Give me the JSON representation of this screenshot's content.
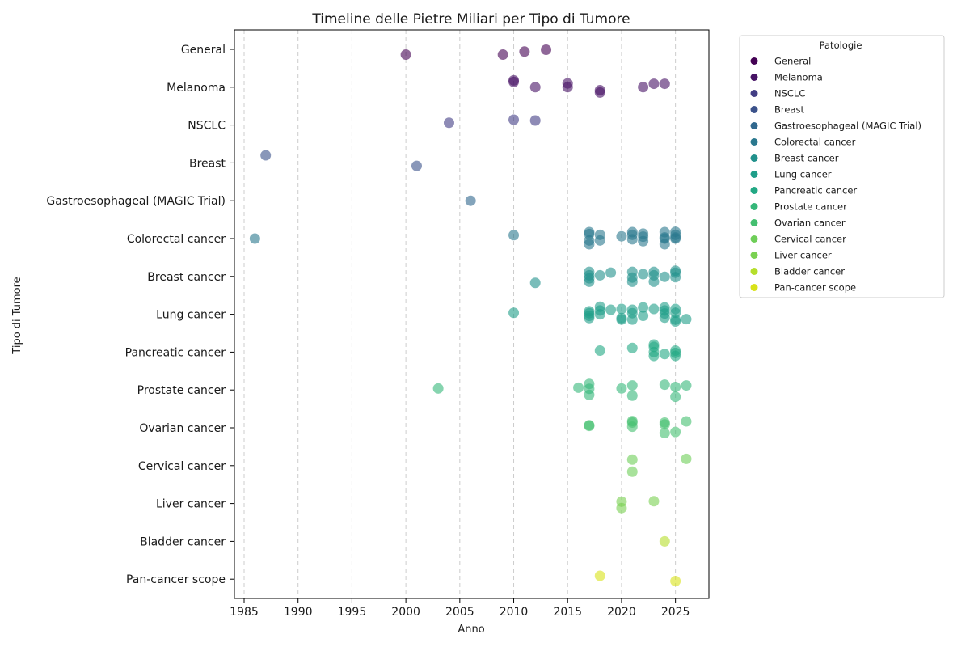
{
  "chart_data": {
    "type": "scatter",
    "title": "Timeline delle Pietre Miliari per Tipo di Tumore",
    "xlabel": "Anno",
    "ylabel": "Tipo di Tumore",
    "xlim": [
      1984.1,
      2028.1
    ],
    "xticks": [
      1985,
      1990,
      1995,
      2000,
      2005,
      2010,
      2015,
      2020,
      2025
    ],
    "grid": "x-dashed",
    "legend": {
      "title": "Patologie",
      "placement": "outside-right-top"
    },
    "categories": [
      "General",
      "Melanoma",
      "NSCLC",
      "Breast",
      "Gastroesophageal (MAGIC Trial)",
      "Colorectal cancer",
      "Breast cancer",
      "Lung cancer",
      "Pancreatic cancer",
      "Prostate cancer",
      "Ovarian cancer",
      "Cervical cancer",
      "Liver cancer",
      "Bladder cancer",
      "Pan-cancer scope"
    ],
    "colors": [
      "#440154",
      "#471365",
      "#433e85",
      "#3b528b",
      "#31688e",
      "#2a788e",
      "#21918c",
      "#1f9e89",
      "#22a884",
      "#35b779",
      "#44bf70",
      "#6ece58",
      "#7ad151",
      "#b5de2b",
      "#d8e219"
    ],
    "series": [
      {
        "name": "General",
        "points": [
          [
            2000,
            0.14
          ],
          [
            2009,
            0.14
          ],
          [
            2011,
            0.06
          ],
          [
            2013,
            0.01
          ]
        ]
      },
      {
        "name": "Melanoma",
        "points": [
          [
            2010,
            -0.18
          ],
          [
            2010,
            -0.14
          ],
          [
            2012,
            0.0
          ],
          [
            2015,
            -0.1
          ],
          [
            2015,
            0.0
          ],
          [
            2018,
            0.08
          ],
          [
            2018,
            0.14
          ],
          [
            2022,
            0.0
          ],
          [
            2023,
            -0.09
          ],
          [
            2024,
            -0.09
          ]
        ]
      },
      {
        "name": "NSCLC",
        "points": [
          [
            2004,
            -0.06
          ],
          [
            2010,
            -0.14
          ],
          [
            2012,
            -0.12
          ]
        ]
      },
      {
        "name": "Breast",
        "points": [
          [
            1987,
            -0.2
          ],
          [
            2001,
            0.08
          ]
        ]
      },
      {
        "name": "Gastroesophageal (MAGIC Trial)",
        "points": [
          [
            2006,
            0.0
          ]
        ]
      },
      {
        "name": "Colorectal cancer",
        "points": [
          [
            1986,
            0.0
          ],
          [
            2010,
            -0.09
          ],
          [
            2017,
            -0.17
          ],
          [
            2017,
            -0.12
          ],
          [
            2017,
            0.05
          ],
          [
            2017,
            0.15
          ],
          [
            2018,
            -0.1
          ],
          [
            2018,
            0.05
          ],
          [
            2020,
            -0.06
          ],
          [
            2021,
            -0.17
          ],
          [
            2021,
            -0.1
          ],
          [
            2021,
            0.02
          ],
          [
            2022,
            -0.13
          ],
          [
            2022,
            -0.05
          ],
          [
            2022,
            0.07
          ],
          [
            2024,
            -0.17
          ],
          [
            2024,
            -0.03
          ],
          [
            2024,
            0.0
          ],
          [
            2024,
            0.15
          ],
          [
            2025,
            -0.18
          ],
          [
            2025,
            -0.1
          ],
          [
            2025,
            -0.03
          ],
          [
            2025,
            0.0
          ]
        ]
      },
      {
        "name": "Breast cancer",
        "points": [
          [
            2012,
            0.17
          ],
          [
            2017,
            -0.12
          ],
          [
            2017,
            -0.03
          ],
          [
            2017,
            0.05
          ],
          [
            2017,
            0.14
          ],
          [
            2018,
            -0.03
          ],
          [
            2019,
            -0.1
          ],
          [
            2021,
            -0.12
          ],
          [
            2021,
            0.03
          ],
          [
            2021,
            0.14
          ],
          [
            2022,
            -0.06
          ],
          [
            2023,
            -0.12
          ],
          [
            2023,
            -0.03
          ],
          [
            2023,
            0.14
          ],
          [
            2024,
            0.01
          ],
          [
            2025,
            -0.15
          ],
          [
            2025,
            -0.1
          ],
          [
            2025,
            0.02
          ]
        ]
      },
      {
        "name": "Lung cancer",
        "points": [
          [
            2010,
            -0.04
          ],
          [
            2017,
            -0.08
          ],
          [
            2017,
            -0.03
          ],
          [
            2017,
            0.04
          ],
          [
            2017,
            0.1
          ],
          [
            2018,
            -0.2
          ],
          [
            2018,
            -0.1
          ],
          [
            2018,
            0.0
          ],
          [
            2019,
            -0.12
          ],
          [
            2020,
            -0.14
          ],
          [
            2020,
            0.1
          ],
          [
            2020,
            0.14
          ],
          [
            2021,
            -0.12
          ],
          [
            2021,
            -0.03
          ],
          [
            2021,
            0.14
          ],
          [
            2022,
            -0.18
          ],
          [
            2022,
            0.04
          ],
          [
            2023,
            -0.14
          ],
          [
            2024,
            -0.18
          ],
          [
            2024,
            -0.1
          ],
          [
            2024,
            -0.02
          ],
          [
            2024,
            0.09
          ],
          [
            2025,
            -0.14
          ],
          [
            2025,
            -0.04
          ],
          [
            2025,
            0.14
          ],
          [
            2025,
            0.19
          ],
          [
            2026,
            0.13
          ]
        ]
      },
      {
        "name": "Pancreatic cancer",
        "points": [
          [
            2018,
            -0.04
          ],
          [
            2021,
            -0.11
          ],
          [
            2023,
            -0.2
          ],
          [
            2023,
            -0.14
          ],
          [
            2023,
            0.0
          ],
          [
            2023,
            0.1
          ],
          [
            2024,
            0.05
          ],
          [
            2025,
            -0.04
          ],
          [
            2025,
            0.02
          ],
          [
            2025,
            0.1
          ]
        ]
      },
      {
        "name": "Prostate cancer",
        "points": [
          [
            2003,
            -0.04
          ],
          [
            2016,
            -0.06
          ],
          [
            2017,
            -0.16
          ],
          [
            2017,
            -0.03
          ],
          [
            2017,
            0.13
          ],
          [
            2020,
            -0.04
          ],
          [
            2021,
            -0.12
          ],
          [
            2021,
            0.15
          ],
          [
            2024,
            -0.14
          ],
          [
            2025,
            -0.08
          ],
          [
            2025,
            0.18
          ],
          [
            2026,
            -0.12
          ]
        ]
      },
      {
        "name": "Ovarian cancer",
        "points": [
          [
            2017,
            -0.07
          ],
          [
            2017,
            -0.05
          ],
          [
            2021,
            -0.18
          ],
          [
            2021,
            -0.14
          ],
          [
            2021,
            -0.03
          ],
          [
            2024,
            -0.14
          ],
          [
            2024,
            -0.09
          ],
          [
            2024,
            0.14
          ],
          [
            2025,
            0.11
          ],
          [
            2026,
            -0.17
          ]
        ]
      },
      {
        "name": "Cervical cancer",
        "points": [
          [
            2021,
            -0.16
          ],
          [
            2021,
            0.16
          ],
          [
            2026,
            -0.18
          ]
        ]
      },
      {
        "name": "Liver cancer",
        "points": [
          [
            2020,
            -0.05
          ],
          [
            2020,
            0.12
          ],
          [
            2023,
            -0.06
          ]
        ]
      },
      {
        "name": "Bladder cancer",
        "points": [
          [
            2024,
            0.0
          ]
        ]
      },
      {
        "name": "Pan-cancer scope",
        "points": [
          [
            2018,
            -0.09
          ],
          [
            2025,
            0.05
          ]
        ]
      }
    ]
  }
}
